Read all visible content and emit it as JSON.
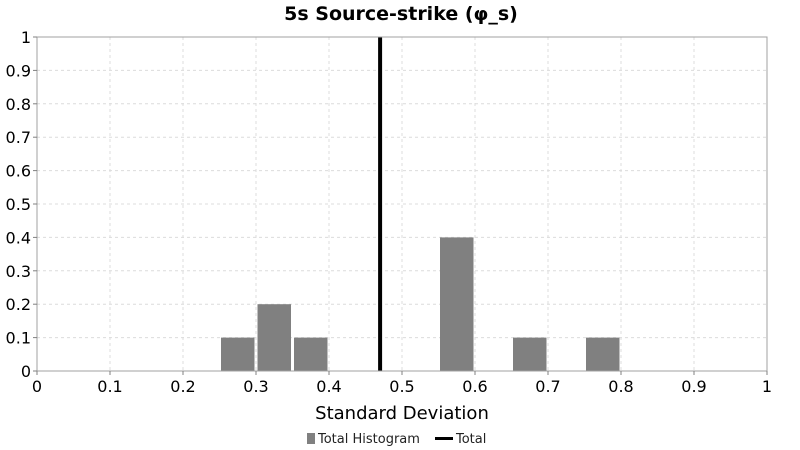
{
  "chart_data": {
    "type": "bar",
    "title": "5s Source-strike (φ_s)",
    "xlabel": "Standard Deviation",
    "ylabel": "",
    "xlim": [
      0,
      1
    ],
    "ylim": [
      0,
      1
    ],
    "x_ticks": [
      "0",
      "0.1",
      "0.2",
      "0.3",
      "0.4",
      "0.5",
      "0.6",
      "0.7",
      "0.8",
      "0.9",
      "1"
    ],
    "y_ticks": [
      "0",
      "0.1",
      "0.2",
      "0.3",
      "0.4",
      "0.5",
      "0.6",
      "0.7",
      "0.8",
      "0.9",
      "1"
    ],
    "grid": true,
    "legend_position": "bottom-center",
    "series": [
      {
        "name": "Total Histogram",
        "kind": "histogram",
        "color": "#808080",
        "bins": [
          {
            "x0": 0.25,
            "x1": 0.3,
            "value": 0.1
          },
          {
            "x0": 0.3,
            "x1": 0.35,
            "value": 0.2
          },
          {
            "x0": 0.35,
            "x1": 0.4,
            "value": 0.1
          },
          {
            "x0": 0.55,
            "x1": 0.6,
            "value": 0.4
          },
          {
            "x0": 0.65,
            "x1": 0.7,
            "value": 0.1
          },
          {
            "x0": 0.75,
            "x1": 0.8,
            "value": 0.1
          }
        ]
      },
      {
        "name": "Total",
        "kind": "vertical-line",
        "color": "#000000",
        "x": 0.47
      }
    ]
  }
}
